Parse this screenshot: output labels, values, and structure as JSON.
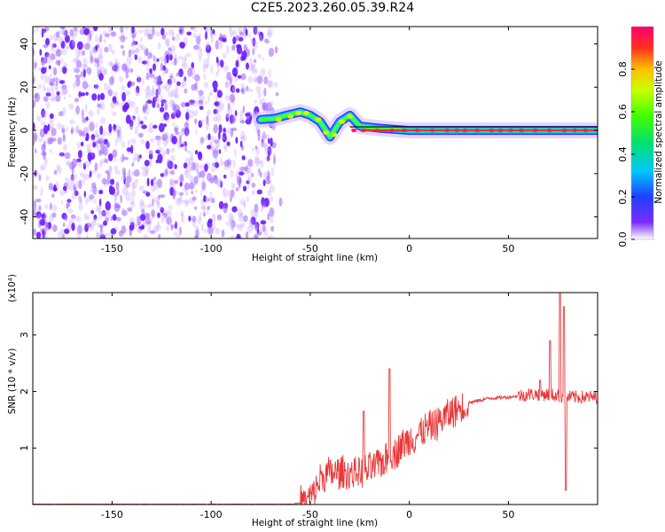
{
  "title": "C2E5.2023.260.05.39.R24",
  "colors": {
    "snr_line": "#e8393a",
    "noise": "#7c3aed",
    "echo_line": "#000000"
  },
  "chart_data": [
    {
      "type": "heatmap",
      "xlabel": "Height of straight line (km)",
      "ylabel": "Frequency (Hz)",
      "xlim": [
        -190,
        95
      ],
      "ylim": [
        -50,
        48
      ],
      "xticks": [
        -150,
        -100,
        -50,
        0,
        50
      ],
      "yticks": [
        40,
        20,
        0,
        -20,
        -40
      ],
      "colorbar": {
        "label": "Normalized spectral amplitude",
        "range": [
          0,
          1
        ],
        "ticks": [
          "0.0",
          "0.2",
          "0.4",
          "0.6",
          "0.8"
        ],
        "tick_values": [
          0,
          0.2,
          0.4,
          0.6,
          0.8
        ]
      },
      "noise_region_x": [
        -190,
        -68
      ],
      "echo_trace": [
        {
          "x": -75,
          "y": 5
        },
        {
          "x": -68,
          "y": 5.5
        },
        {
          "x": -62,
          "y": 7
        },
        {
          "x": -55,
          "y": 8.5
        },
        {
          "x": -50,
          "y": 7
        },
        {
          "x": -45,
          "y": 4
        },
        {
          "x": -40,
          "y": -3
        },
        {
          "x": -35,
          "y": 4
        },
        {
          "x": -30,
          "y": 7
        },
        {
          "x": -25,
          "y": 2
        },
        {
          "x": -15,
          "y": 1
        },
        {
          "x": 0,
          "y": 0
        },
        {
          "x": 50,
          "y": 0
        },
        {
          "x": 95,
          "y": 0
        }
      ]
    },
    {
      "type": "line",
      "xlabel": "Height of straight line (km)",
      "ylabel": "SNR (10 * v/v)",
      "multiplier": "(x10⁴)",
      "xlim": [
        -190,
        95
      ],
      "ylim": [
        0,
        3.75
      ],
      "xticks": [
        -150,
        -100,
        -50,
        0,
        50
      ],
      "yticks": [
        1,
        2,
        3
      ],
      "series_envelope": [
        {
          "x": -190,
          "y": 0.0
        },
        {
          "x": -60,
          "y": 0.0
        },
        {
          "x": -52,
          "y": 0.05
        },
        {
          "x": -48,
          "y": 0.2
        },
        {
          "x": -45,
          "y": 0.45
        },
        {
          "x": -40,
          "y": 0.55
        },
        {
          "x": -30,
          "y": 0.55
        },
        {
          "x": -20,
          "y": 0.6
        },
        {
          "x": -10,
          "y": 0.85
        },
        {
          "x": 0,
          "y": 1.15
        },
        {
          "x": 10,
          "y": 1.35
        },
        {
          "x": 20,
          "y": 1.6
        },
        {
          "x": 30,
          "y": 1.8
        },
        {
          "x": 40,
          "y": 1.88
        },
        {
          "x": 50,
          "y": 1.9
        },
        {
          "x": 60,
          "y": 1.95
        },
        {
          "x": 70,
          "y": 1.95
        },
        {
          "x": 80,
          "y": 1.9
        },
        {
          "x": 95,
          "y": 1.9
        }
      ],
      "spikes": [
        {
          "x": -10,
          "y": 2.4
        },
        {
          "x": -23,
          "y": 1.65
        },
        {
          "x": 66,
          "y": 2.2
        },
        {
          "x": 71,
          "y": 2.9
        },
        {
          "x": 76,
          "y": 3.75
        },
        {
          "x": 78,
          "y": 3.5
        },
        {
          "x": 79,
          "y": 0.25
        }
      ]
    }
  ]
}
